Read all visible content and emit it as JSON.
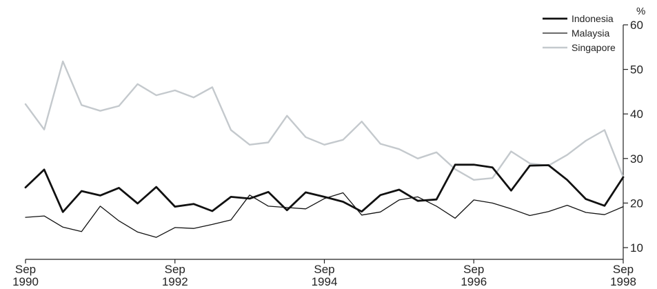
{
  "chart_data": {
    "type": "line",
    "title": "",
    "xlabel": "",
    "ylabel": "%",
    "ylim": [
      10,
      60
    ],
    "yticks": [
      10,
      20,
      30,
      40,
      50,
      60
    ],
    "y_axis_side": "right",
    "grid": false,
    "legend_position": "top-right",
    "x_ticks": [
      {
        "month": "Sep",
        "year": "1990"
      },
      {
        "month": "Sep",
        "year": "1992"
      },
      {
        "month": "Sep",
        "year": "1994"
      },
      {
        "month": "Sep",
        "year": "1996"
      },
      {
        "month": "Sep",
        "year": "1998"
      }
    ],
    "x": [
      "Sep-1990",
      "Dec-1990",
      "Mar-1991",
      "Jun-1991",
      "Sep-1991",
      "Dec-1991",
      "Mar-1992",
      "Jun-1992",
      "Sep-1992",
      "Dec-1992",
      "Mar-1993",
      "Jun-1993",
      "Sep-1993",
      "Dec-1993",
      "Mar-1994",
      "Jun-1994",
      "Sep-1994",
      "Dec-1994",
      "Mar-1995",
      "Jun-1995",
      "Sep-1995",
      "Dec-1995",
      "Mar-1996",
      "Jun-1996",
      "Sep-1996",
      "Dec-1996",
      "Mar-1997",
      "Jun-1997",
      "Sep-1997",
      "Dec-1997",
      "Mar-1998",
      "Jun-1998",
      "Sep-1998"
    ],
    "series": [
      {
        "name": "Indonesia",
        "color": "#111111",
        "values": [
          23.5,
          27.5,
          18.0,
          22.7,
          21.7,
          23.4,
          19.9,
          23.6,
          19.2,
          19.8,
          18.2,
          21.4,
          21.0,
          22.5,
          18.4,
          22.4,
          21.4,
          20.3,
          18.1,
          21.8,
          23.0,
          20.5,
          20.8,
          28.6,
          28.6,
          28.0,
          22.8,
          28.4,
          28.5,
          25.2,
          20.9,
          19.4,
          25.8
        ]
      },
      {
        "name": "Malaysia",
        "color": "#111111",
        "values": [
          16.8,
          17.1,
          14.6,
          13.6,
          19.3,
          16.0,
          13.5,
          12.3,
          14.5,
          14.3,
          15.2,
          16.2,
          21.8,
          19.3,
          19.0,
          18.7,
          21.0,
          22.3,
          17.3,
          18.0,
          20.7,
          21.4,
          19.3,
          16.6,
          20.7,
          20.0,
          18.7,
          17.2,
          18.1,
          19.5,
          17.9,
          17.4,
          19.2
        ]
      },
      {
        "name": "Singapore",
        "color": "#c4c9cd",
        "values": [
          42.2,
          36.5,
          51.8,
          42.0,
          40.7,
          41.8,
          46.7,
          44.2,
          45.3,
          43.7,
          46.0,
          36.4,
          33.1,
          33.6,
          39.6,
          34.8,
          33.1,
          34.2,
          38.3,
          33.3,
          32.1,
          30.0,
          31.4,
          27.6,
          25.2,
          25.6,
          31.6,
          28.9,
          28.4,
          30.8,
          34.0,
          36.4,
          25.8
        ]
      }
    ]
  }
}
